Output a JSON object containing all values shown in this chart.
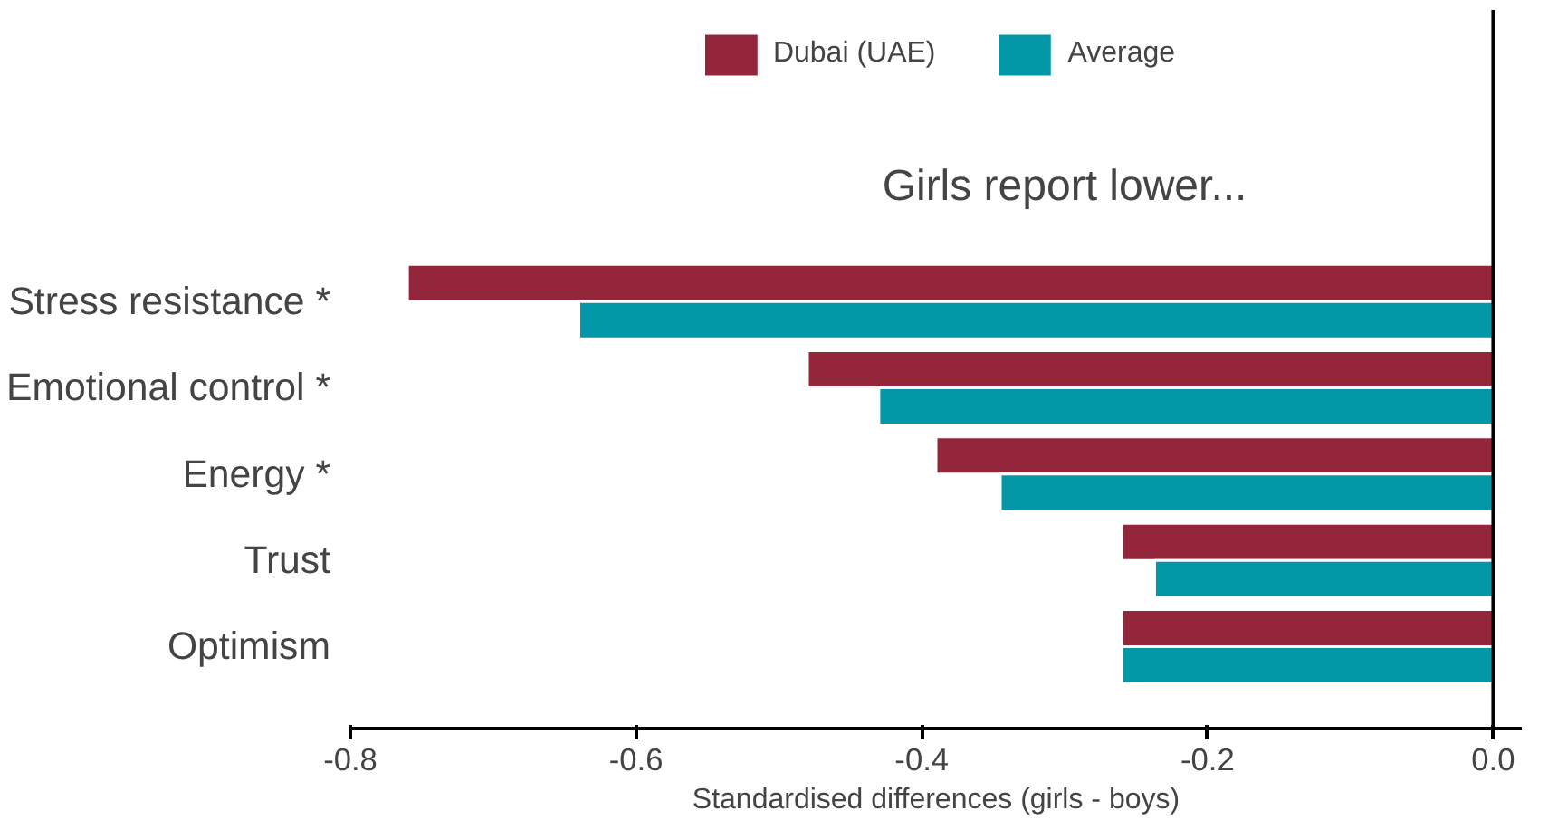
{
  "chart_data": {
    "type": "bar",
    "orientation": "horizontal",
    "categories": [
      "Stress resistance *",
      "Emotional control *",
      "Energy *",
      "Trust",
      "Optimism"
    ],
    "series": [
      {
        "name": "Dubai (UAE)",
        "color": "#94263b",
        "values": [
          -0.76,
          -0.48,
          -0.39,
          -0.26,
          -0.26
        ]
      },
      {
        "name": "Average",
        "color": "#0397a7",
        "values": [
          -0.64,
          -0.43,
          -0.345,
          -0.237,
          -0.26
        ]
      }
    ],
    "xlim": [
      -0.8,
      0.02
    ],
    "xticks": [
      -0.8,
      -0.6,
      -0.4,
      -0.2,
      {
        "value": 0,
        "label": "0.0"
      }
    ],
    "xlabel": "Standardised differences (girls - boys)",
    "annotations": [
      "Girls report lower..."
    ],
    "ref_lines": [
      {
        "axis": "x",
        "value": 0,
        "color": "#000000"
      }
    ],
    "legend": "top",
    "grid": false
  }
}
